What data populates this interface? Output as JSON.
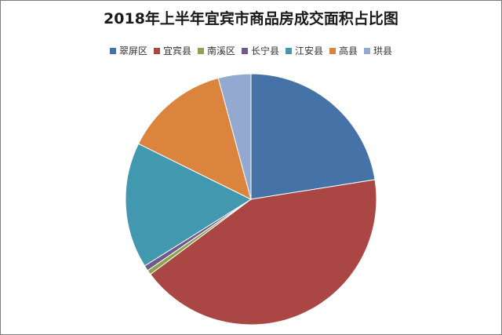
{
  "chart_data": {
    "type": "pie",
    "title": "2018年上半年宜宾市商品房成交面积占比图",
    "legend_position": "top",
    "categories": [
      "翠屏区",
      "宜宾县",
      "南溪区",
      "长宁县",
      "江安县",
      "高县",
      "珙县"
    ],
    "values": [
      22.5,
      42.3,
      0.6,
      0.7,
      16.2,
      13.5,
      4.2
    ],
    "colors": [
      "#4572a7",
      "#aa4643",
      "#89a54e",
      "#71588f",
      "#4198af",
      "#db843d",
      "#93a9cf"
    ]
  }
}
